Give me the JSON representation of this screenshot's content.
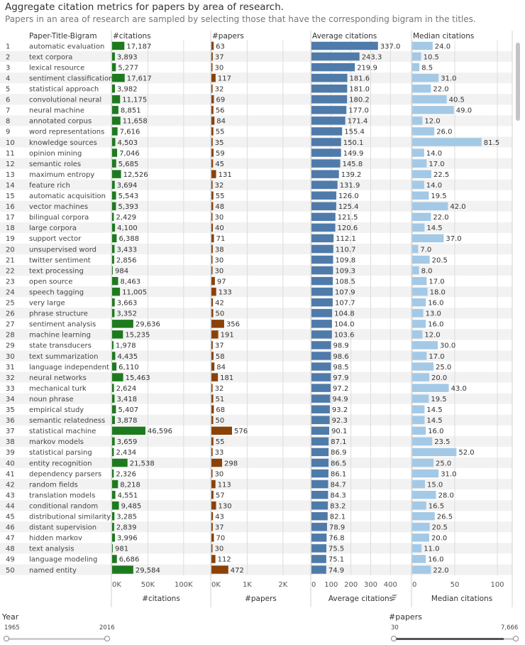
{
  "title": "Aggregate citation metrics for papers by area of research.",
  "subtitle": "Papers in an area of research are sampled by selecting those that have the corresponding  bigram in the titles.",
  "colors": {
    "citations": "#1e7a1e",
    "papers": "#8b4208",
    "average": "#4f7bab",
    "median": "#a3c9e6",
    "stripe": "#f2f2f2",
    "grid": "#dcdcdc"
  },
  "chart_data": {
    "type": "bar",
    "row_header": "Paper-Title-Bigram",
    "columns": [
      {
        "key": "citations",
        "header": "#citations",
        "axis_title": "#citations",
        "ticks": [
          "0K",
          "50K",
          "100K"
        ],
        "tick_values": [
          0,
          50000,
          100000
        ],
        "xlim": [
          0,
          120000
        ]
      },
      {
        "key": "papers",
        "header": "#papers",
        "axis_title": "#papers",
        "ticks": [
          "0K",
          "1K",
          "2K"
        ],
        "tick_values": [
          0,
          1000,
          2000
        ],
        "xlim": [
          0,
          2400
        ]
      },
      {
        "key": "average",
        "header": "Average citations",
        "axis_title": "Average citations",
        "ticks": [
          "0",
          "100",
          "200",
          "300",
          "400"
        ],
        "tick_values": [
          0,
          100,
          200,
          300,
          400
        ],
        "xlim": [
          0,
          460
        ]
      },
      {
        "key": "median",
        "header": "Median citations",
        "axis_title": "Median citations",
        "ticks": [
          "0",
          "50",
          "100"
        ],
        "tick_values": [
          0,
          50,
          100
        ],
        "xlim": [
          0,
          105
        ]
      }
    ],
    "rows": [
      {
        "rank": "1",
        "bigram": "automatic evaluation",
        "citations": "17,187",
        "papers": "63",
        "average": "337.0",
        "median": "24.0"
      },
      {
        "rank": "2",
        "bigram": "text corpora",
        "citations": "3,893",
        "papers": "37",
        "average": "243.3",
        "median": "10.5"
      },
      {
        "rank": "3",
        "bigram": "lexical resource",
        "citations": "5,277",
        "papers": "30",
        "average": "219.9",
        "median": "8.5"
      },
      {
        "rank": "4",
        "bigram": "sentiment classification",
        "citations": "17,617",
        "papers": "117",
        "average": "181.6",
        "median": "31.0"
      },
      {
        "rank": "5",
        "bigram": "statistical approach",
        "citations": "3,982",
        "papers": "32",
        "average": "181.0",
        "median": "22.0"
      },
      {
        "rank": "6",
        "bigram": "convolutional neural",
        "citations": "11,175",
        "papers": "69",
        "average": "180.2",
        "median": "40.5"
      },
      {
        "rank": "7",
        "bigram": "neural machine",
        "citations": "8,851",
        "papers": "56",
        "average": "177.0",
        "median": "49.0"
      },
      {
        "rank": "8",
        "bigram": "annotated corpus",
        "citations": "11,658",
        "papers": "84",
        "average": "171.4",
        "median": "12.0"
      },
      {
        "rank": "9",
        "bigram": "word representations",
        "citations": "7,616",
        "papers": "55",
        "average": "155.4",
        "median": "26.0"
      },
      {
        "rank": "10",
        "bigram": "knowledge sources",
        "citations": "4,503",
        "papers": "35",
        "average": "150.1",
        "median": "81.5"
      },
      {
        "rank": "11",
        "bigram": "opinion mining",
        "citations": "7,046",
        "papers": "59",
        "average": "149.9",
        "median": "14.0"
      },
      {
        "rank": "12",
        "bigram": "semantic roles",
        "citations": "5,685",
        "papers": "45",
        "average": "145.8",
        "median": "17.0"
      },
      {
        "rank": "13",
        "bigram": "maximum entropy",
        "citations": "12,526",
        "papers": "131",
        "average": "139.2",
        "median": "22.5"
      },
      {
        "rank": "14",
        "bigram": "feature rich",
        "citations": "3,694",
        "papers": "32",
        "average": "131.9",
        "median": "14.0"
      },
      {
        "rank": "15",
        "bigram": "automatic acquisition",
        "citations": "5,543",
        "papers": "55",
        "average": "126.0",
        "median": "19.5"
      },
      {
        "rank": "16",
        "bigram": "vector machines",
        "citations": "5,393",
        "papers": "48",
        "average": "125.4",
        "median": "42.0"
      },
      {
        "rank": "17",
        "bigram": "bilingual corpora",
        "citations": "2,429",
        "papers": "30",
        "average": "121.5",
        "median": "22.0"
      },
      {
        "rank": "18",
        "bigram": "large corpora",
        "citations": "4,100",
        "papers": "40",
        "average": "120.6",
        "median": "14.5"
      },
      {
        "rank": "19",
        "bigram": "support vector",
        "citations": "6,388",
        "papers": "71",
        "average": "112.1",
        "median": "37.0"
      },
      {
        "rank": "20",
        "bigram": "unsupervised word",
        "citations": "3,433",
        "papers": "38",
        "average": "110.7",
        "median": "7.0"
      },
      {
        "rank": "21",
        "bigram": "twitter sentiment",
        "citations": "2,856",
        "papers": "30",
        "average": "109.8",
        "median": "20.5"
      },
      {
        "rank": "22",
        "bigram": "text processing",
        "citations": "984",
        "papers": "30",
        "average": "109.3",
        "median": "8.0"
      },
      {
        "rank": "23",
        "bigram": "open source",
        "citations": "8,463",
        "papers": "97",
        "average": "108.5",
        "median": "17.0"
      },
      {
        "rank": "24",
        "bigram": "speech tagging",
        "citations": "11,005",
        "papers": "133",
        "average": "107.9",
        "median": "18.0"
      },
      {
        "rank": "25",
        "bigram": "very large",
        "citations": "3,663",
        "papers": "42",
        "average": "107.7",
        "median": "16.0"
      },
      {
        "rank": "26",
        "bigram": "phrase structure",
        "citations": "3,352",
        "papers": "50",
        "average": "104.8",
        "median": "13.0"
      },
      {
        "rank": "27",
        "bigram": "sentiment analysis",
        "citations": "29,636",
        "papers": "356",
        "average": "104.0",
        "median": "16.0"
      },
      {
        "rank": "28",
        "bigram": "machine learning",
        "citations": "15,235",
        "papers": "191",
        "average": "103.6",
        "median": "12.0"
      },
      {
        "rank": "29",
        "bigram": "state transducers",
        "citations": "1,978",
        "papers": "37",
        "average": "98.9",
        "median": "30.0"
      },
      {
        "rank": "30",
        "bigram": "text summarization",
        "citations": "4,435",
        "papers": "58",
        "average": "98.6",
        "median": "17.0"
      },
      {
        "rank": "31",
        "bigram": "language independent",
        "citations": "6,110",
        "papers": "84",
        "average": "98.5",
        "median": "25.0"
      },
      {
        "rank": "32",
        "bigram": "neural networks",
        "citations": "15,463",
        "papers": "181",
        "average": "97.9",
        "median": "20.0"
      },
      {
        "rank": "33",
        "bigram": "mechanical turk",
        "citations": "2,624",
        "papers": "32",
        "average": "97.2",
        "median": "43.0"
      },
      {
        "rank": "34",
        "bigram": "noun phrase",
        "citations": "3,418",
        "papers": "51",
        "average": "94.9",
        "median": "19.5"
      },
      {
        "rank": "35",
        "bigram": "empirical study",
        "citations": "5,407",
        "papers": "68",
        "average": "93.2",
        "median": "14.5"
      },
      {
        "rank": "36",
        "bigram": "semantic relatedness",
        "citations": "3,878",
        "papers": "50",
        "average": "92.3",
        "median": "14.5"
      },
      {
        "rank": "37",
        "bigram": "statistical machine",
        "citations": "46,596",
        "papers": "576",
        "average": "90.1",
        "median": "16.0"
      },
      {
        "rank": "38",
        "bigram": "markov models",
        "citations": "3,659",
        "papers": "55",
        "average": "87.1",
        "median": "23.5"
      },
      {
        "rank": "39",
        "bigram": "statistical parsing",
        "citations": "2,434",
        "papers": "33",
        "average": "86.9",
        "median": "52.0"
      },
      {
        "rank": "40",
        "bigram": "entity recognition",
        "citations": "21,538",
        "papers": "298",
        "average": "86.5",
        "median": "25.0"
      },
      {
        "rank": "41",
        "bigram": "dependency parsers",
        "citations": "2,326",
        "papers": "30",
        "average": "86.1",
        "median": "31.0"
      },
      {
        "rank": "42",
        "bigram": "random fields",
        "citations": "8,218",
        "papers": "113",
        "average": "84.7",
        "median": "15.0"
      },
      {
        "rank": "43",
        "bigram": "translation models",
        "citations": "4,551",
        "papers": "57",
        "average": "84.3",
        "median": "28.0"
      },
      {
        "rank": "44",
        "bigram": "conditional random",
        "citations": "9,485",
        "papers": "130",
        "average": "83.2",
        "median": "16.5"
      },
      {
        "rank": "45",
        "bigram": "distributional similarity",
        "citations": "3,285",
        "papers": "43",
        "average": "82.1",
        "median": "26.5"
      },
      {
        "rank": "46",
        "bigram": "distant supervision",
        "citations": "2,839",
        "papers": "37",
        "average": "78.9",
        "median": "20.5"
      },
      {
        "rank": "47",
        "bigram": "hidden markov",
        "citations": "3,996",
        "papers": "70",
        "average": "76.8",
        "median": "20.0"
      },
      {
        "rank": "48",
        "bigram": "text analysis",
        "citations": "981",
        "papers": "30",
        "average": "75.5",
        "median": "11.0"
      },
      {
        "rank": "49",
        "bigram": "language modeling",
        "citations": "6,686",
        "papers": "112",
        "average": "75.1",
        "median": "16.0"
      },
      {
        "rank": "50",
        "bigram": "named entity",
        "citations": "29,584",
        "papers": "472",
        "average": "74.9",
        "median": "22.0"
      }
    ]
  },
  "filters": {
    "year": {
      "label": "Year",
      "min": "1965",
      "max": "2016"
    },
    "papers": {
      "label": "#papers",
      "min": "30",
      "max": "7,666",
      "selected_fraction": [
        0.0,
        0.9
      ]
    }
  }
}
